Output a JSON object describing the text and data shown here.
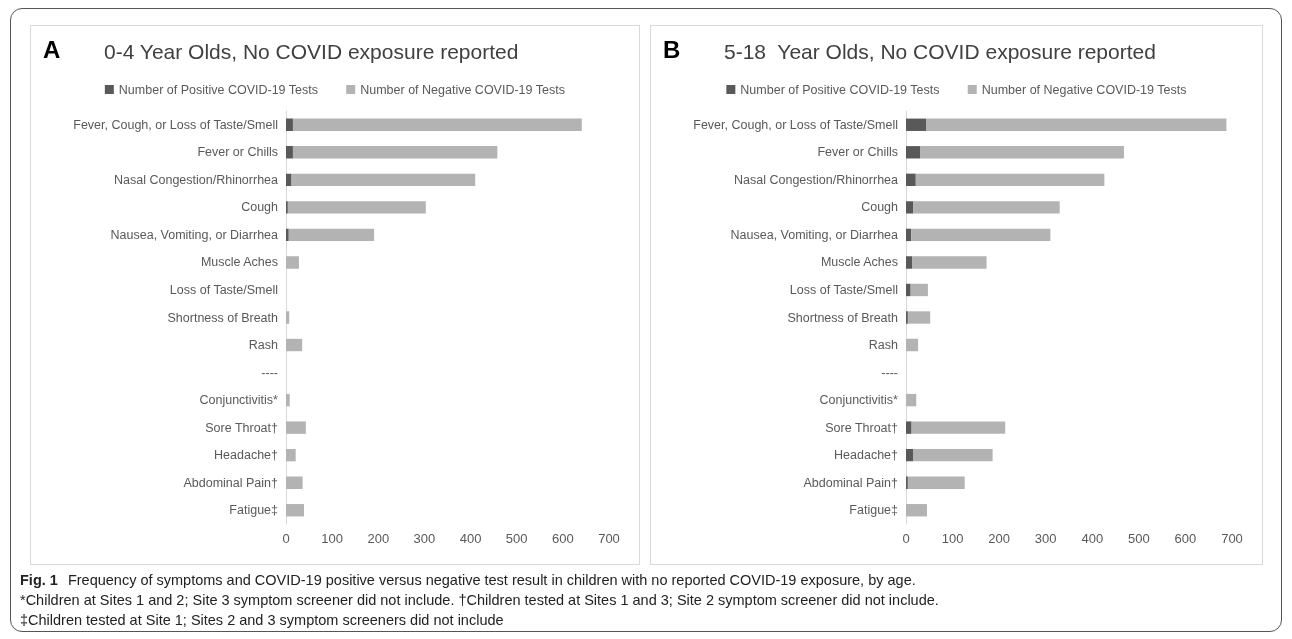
{
  "chart_data": [
    {
      "type": "bar",
      "orientation": "horizontal",
      "stacked": true,
      "title": "0-4 Year Olds, No COVID exposure reported",
      "annotations": [
        "A",
        "Fig. 1",
        "Frequency of symptoms and COVID-19 positive versus negative test result in children with no reported COVID-19 exposure, by age.",
        "*Children at Sites 1 and 2; Site 3 symptom screener did not include. †Children tested at Sites 1 and 3; Site 2 symptom screener did not include.",
        "‡Children tested at Site 1; Sites 2 and 3 symptom screeners did not include"
      ],
      "categories": [
        "Fever, Cough, or Loss of Taste/Smell",
        "Fever or Chills",
        "Nasal Congestion/Rhinorrhea",
        "Cough",
        "Nausea, Vomiting, or Diarrhea",
        "Muscle Aches",
        "Loss of Taste/Smell",
        "Shortness of Breath",
        "Rash",
        "----",
        "Conjunctivitis*",
        "Sore Throat†",
        "Headache†",
        "Abdominal Pain†",
        "Fatigue‡"
      ],
      "series": [
        {
          "name": "Number of Positive COVID-19 Tests",
          "color": "#595959",
          "values": [
            15,
            15,
            12,
            4,
            6,
            0,
            0,
            0,
            0,
            null,
            0,
            0,
            0,
            0,
            0
          ]
        },
        {
          "name": "Number of Negative COVID-19 Tests",
          "color": "#b3b3b3",
          "values": [
            626,
            443,
            398,
            299,
            185,
            28,
            0,
            7,
            35,
            null,
            8,
            43,
            21,
            36,
            39
          ]
        }
      ],
      "xlim": [
        0,
        700
      ],
      "xticks": [
        0,
        100,
        200,
        300,
        400,
        500,
        600,
        700
      ],
      "grid": false,
      "legend": "top"
    },
    {
      "type": "bar",
      "orientation": "horizontal",
      "stacked": true,
      "title": "5-18  Year Olds, No COVID exposure reported",
      "annotations": [
        "B"
      ],
      "categories": [
        "Fever, Cough, or Loss of Taste/Smell",
        "Fever or Chills",
        "Nasal Congestion/Rhinorrhea",
        "Cough",
        "Nausea, Vomiting, or Diarrhea",
        "Muscle Aches",
        "Loss of Taste/Smell",
        "Shortness of Breath",
        "Rash",
        "----",
        "Conjunctivitis*",
        "Sore Throat†",
        "Headache†",
        "Abdominal Pain†",
        "Fatigue‡"
      ],
      "series": [
        {
          "name": "Number of Positive COVID-19 Tests",
          "color": "#595959",
          "values": [
            43,
            31,
            21,
            16,
            11,
            13,
            10,
            4,
            0,
            null,
            0,
            12,
            16,
            4,
            0
          ]
        },
        {
          "name": "Number of Negative COVID-19 Tests",
          "color": "#b3b3b3",
          "values": [
            645,
            437,
            405,
            314,
            299,
            160,
            37,
            48,
            26,
            null,
            22,
            201,
            170,
            122,
            45
          ]
        }
      ],
      "xlim": [
        0,
        700
      ],
      "xticks": [
        0,
        100,
        200,
        300,
        400,
        500,
        600,
        700
      ],
      "grid": false,
      "legend": "top"
    }
  ]
}
